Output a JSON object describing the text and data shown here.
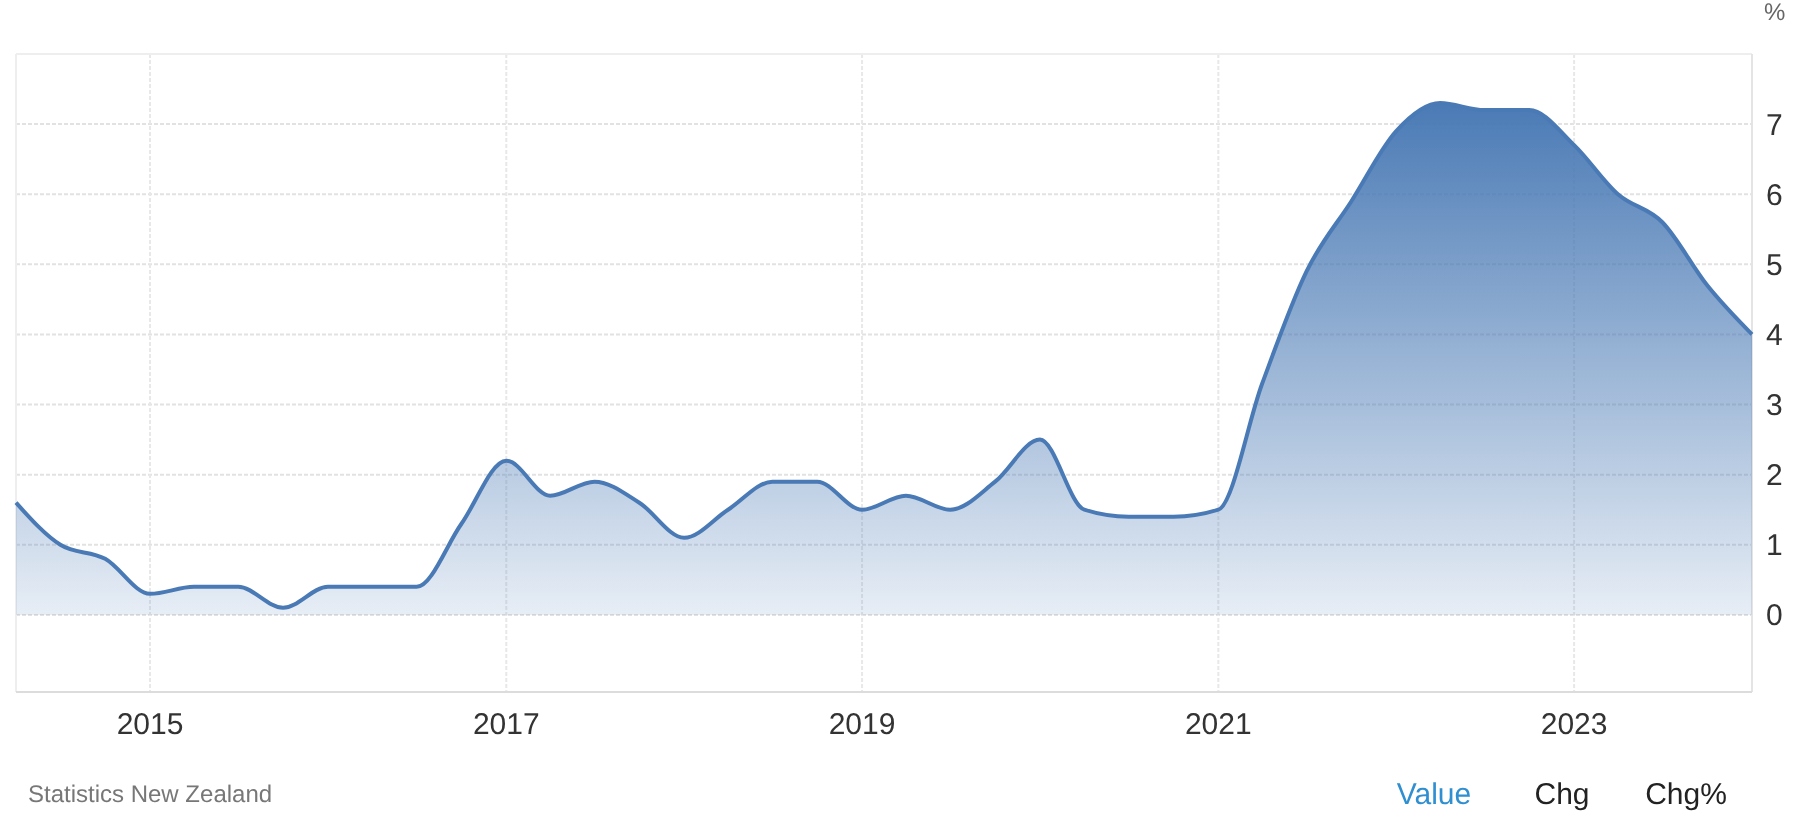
{
  "chart_data": {
    "type": "area",
    "ylabel": "%",
    "x": [
      "2014-04",
      "2014-07",
      "2014-10",
      "2015-01",
      "2015-04",
      "2015-07",
      "2015-10",
      "2016-01",
      "2016-04",
      "2016-07",
      "2016-10",
      "2017-01",
      "2017-04",
      "2017-07",
      "2017-10",
      "2018-01",
      "2018-04",
      "2018-07",
      "2018-10",
      "2019-01",
      "2019-04",
      "2019-07",
      "2019-10",
      "2020-01",
      "2020-04",
      "2020-07",
      "2020-10",
      "2021-01",
      "2021-04",
      "2021-07",
      "2021-10",
      "2022-01",
      "2022-04",
      "2022-07",
      "2022-10",
      "2023-01",
      "2023-04",
      "2023-07",
      "2023-10",
      "2024-01"
    ],
    "series": [
      {
        "color": "#4a7ab5",
        "values": [
          1.6,
          1.0,
          0.8,
          0.3,
          0.4,
          0.4,
          0.1,
          0.4,
          0.4,
          0.4,
          1.3,
          2.2,
          1.7,
          1.9,
          1.6,
          1.1,
          1.5,
          1.9,
          1.9,
          1.5,
          1.7,
          1.5,
          1.9,
          2.5,
          1.5,
          1.4,
          1.4,
          1.5,
          3.3,
          4.9,
          5.9,
          6.9,
          7.3,
          7.2,
          7.2,
          6.7,
          6.0,
          5.6,
          4.7,
          4.0
        ]
      }
    ],
    "xlim": [
      "2014-04",
      "2024-01"
    ],
    "ylim": [
      -1.1,
      8
    ],
    "xticks": [
      {
        "value": "2015-01",
        "label": "2015"
      },
      {
        "value": "2017-01",
        "label": "2017"
      },
      {
        "value": "2019-01",
        "label": "2019"
      },
      {
        "value": "2021-01",
        "label": "2021"
      },
      {
        "value": "2023-01",
        "label": "2023"
      }
    ],
    "yticks": [
      0,
      1,
      2,
      3,
      4,
      5,
      6,
      7
    ],
    "grid": true,
    "annotations": [
      "Statistics New Zealand",
      "Value",
      "Chg",
      "Chg%"
    ]
  }
}
